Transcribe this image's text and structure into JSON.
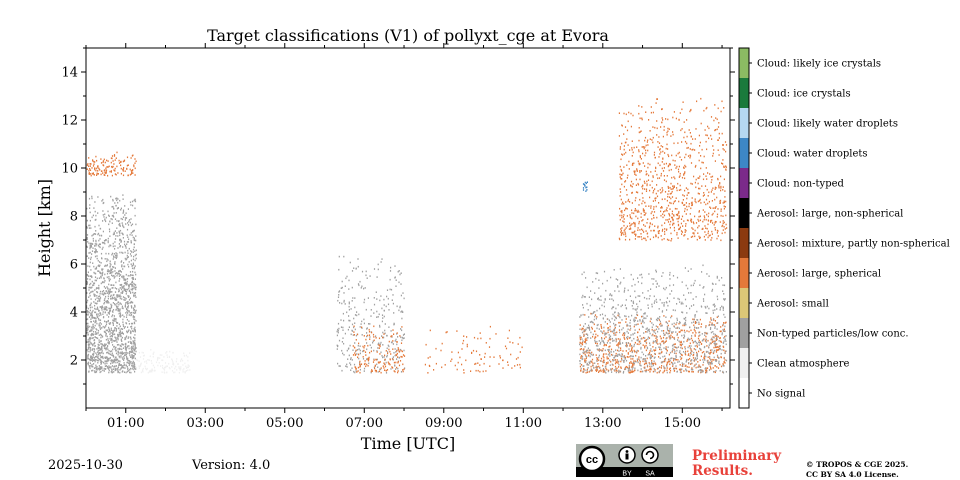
{
  "chart_data": {
    "type": "heatmap",
    "title": "Target classifications (V1) of pollyxt_cge at Evora",
    "xlabel": "Time [UTC]",
    "ylabel": "Height [km]",
    "xlim": [
      0,
      16.2
    ],
    "ylim": [
      0,
      15
    ],
    "x_ticks": [
      {
        "value": 1,
        "label": "01:00"
      },
      {
        "value": 3,
        "label": "03:00"
      },
      {
        "value": 5,
        "label": "05:00"
      },
      {
        "value": 7,
        "label": "07:00"
      },
      {
        "value": 9,
        "label": "09:00"
      },
      {
        "value": 11,
        "label": "11:00"
      },
      {
        "value": 13,
        "label": "13:00"
      },
      {
        "value": 15,
        "label": "15:00"
      }
    ],
    "y_ticks": [
      {
        "value": 2,
        "label": "2"
      },
      {
        "value": 4,
        "label": "4"
      },
      {
        "value": 6,
        "label": "6"
      },
      {
        "value": 8,
        "label": "8"
      },
      {
        "value": 10,
        "label": "10"
      },
      {
        "value": 12,
        "label": "12"
      },
      {
        "value": 14,
        "label": "14"
      }
    ],
    "classes": [
      {
        "label": "No signal",
        "color": "#ffffff"
      },
      {
        "label": "Clean atmosphere",
        "color": "#f0f0f0"
      },
      {
        "label": "Non-typed particles/low conc.",
        "color": "#a0a0a0"
      },
      {
        "label": "Aerosol: small",
        "color": "#dcc777"
      },
      {
        "label": "Aerosol: large, spherical",
        "color": "#e4793a"
      },
      {
        "label": "Aerosol: mixture, partly non-spherical",
        "color": "#8b3a10"
      },
      {
        "label": "Aerosol: large, non-spherical",
        "color": "#000000"
      },
      {
        "label": "Cloud: non-typed",
        "color": "#7b2a8a"
      },
      {
        "label": "Cloud: water droplets",
        "color": "#3d87c6"
      },
      {
        "label": "Cloud: likely water droplets",
        "color": "#b5d8f2"
      },
      {
        "label": "Cloud: ice crystals",
        "color": "#1a7a3c"
      },
      {
        "label": "Cloud: likely ice crystals",
        "color": "#8bbb63"
      }
    ],
    "regions": [
      {
        "class": "Non-typed particles/low conc.",
        "t0": 0.0,
        "t1": 1.25,
        "h0": 1.5,
        "h1": 9.0,
        "density": 0.55
      },
      {
        "class": "Clean atmosphere",
        "t0": 1.25,
        "t1": 2.6,
        "h0": 1.5,
        "h1": 2.5,
        "density": 0.35
      },
      {
        "class": "Aerosol: large, spherical",
        "t0": 0.0,
        "t1": 1.25,
        "h0": 9.7,
        "h1": 10.7,
        "density": 0.35
      },
      {
        "class": "Non-typed particles/low conc.",
        "t0": 6.3,
        "t1": 8.0,
        "h0": 1.5,
        "h1": 6.5,
        "density": 0.12
      },
      {
        "class": "Aerosol: large, spherical",
        "t0": 6.7,
        "t1": 8.0,
        "h0": 1.5,
        "h1": 3.5,
        "density": 0.2
      },
      {
        "class": "Aerosol: large, spherical",
        "t0": 8.5,
        "t1": 11.0,
        "h0": 1.5,
        "h1": 3.5,
        "density": 0.06
      },
      {
        "class": "Aerosol: large, spherical",
        "t0": 12.4,
        "t1": 16.1,
        "h0": 1.5,
        "h1": 4.0,
        "density": 0.25
      },
      {
        "class": "Non-typed particles/low conc.",
        "t0": 12.4,
        "t1": 16.1,
        "h0": 1.5,
        "h1": 6.0,
        "density": 0.18
      },
      {
        "class": "Aerosol: large, spherical",
        "t0": 13.4,
        "t1": 16.1,
        "h0": 7.0,
        "h1": 13.0,
        "density": 0.18
      },
      {
        "class": "Cloud: water droplets",
        "t0": 12.5,
        "t1": 12.6,
        "h0": 9.0,
        "h1": 9.8,
        "density": 0.5
      }
    ]
  },
  "legend": {
    "colors": {
      "frame": "#000000"
    }
  },
  "footer": {
    "date": "2025-10-30",
    "version": "Version: 4.0",
    "preliminary_line1": "Preliminary",
    "preliminary_line2": "Results.",
    "copyright_line1": "© TROPOS & CGE 2025.",
    "copyright_line2": "CC BY SA 4.0 License.",
    "badge_cc": "cc",
    "badge_by": "BY",
    "badge_sa": "SA"
  }
}
